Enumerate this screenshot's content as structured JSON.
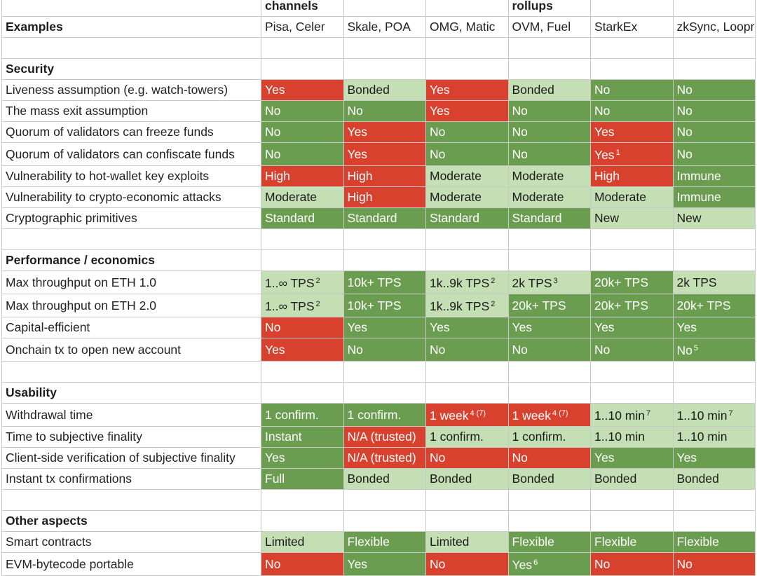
{
  "colors": {
    "dark_green": "#6a9d4f",
    "light_green": "#c5dfb4",
    "red": "#d9412f",
    "white": "#ffffff"
  },
  "top_row": [
    "",
    "channels",
    "",
    "",
    "rollups",
    "",
    ""
  ],
  "rows": [
    {
      "kind": "header-row",
      "label": "Examples",
      "cells": [
        {
          "text": "Pisa, Celer",
          "c": "wt"
        },
        {
          "text": "Skale, POA",
          "c": "wt"
        },
        {
          "text": "OMG, Matic",
          "c": "wt"
        },
        {
          "text": "OVM, Fuel",
          "c": "wt"
        },
        {
          "text": "StarkEx",
          "c": "wt"
        },
        {
          "text": "zkSync, Loopr",
          "c": "wt"
        }
      ]
    },
    {
      "kind": "blank"
    },
    {
      "kind": "section",
      "label": "Security"
    },
    {
      "kind": "data",
      "label": "Liveness assumption (e.g. watch-towers)",
      "cells": [
        {
          "text": "Yes",
          "c": "rd"
        },
        {
          "text": "Bonded",
          "c": "lg"
        },
        {
          "text": "Yes",
          "c": "rd"
        },
        {
          "text": "Bonded",
          "c": "lg"
        },
        {
          "text": "No",
          "c": "dg"
        },
        {
          "text": "No",
          "c": "dg"
        }
      ]
    },
    {
      "kind": "data",
      "label": "The mass exit assumption",
      "cells": [
        {
          "text": "No",
          "c": "dg"
        },
        {
          "text": "No",
          "c": "dg"
        },
        {
          "text": "Yes",
          "c": "rd"
        },
        {
          "text": "No",
          "c": "dg"
        },
        {
          "text": "No",
          "c": "dg"
        },
        {
          "text": "No",
          "c": "dg"
        }
      ]
    },
    {
      "kind": "data",
      "label": "Quorum of validators can freeze funds",
      "cells": [
        {
          "text": "No",
          "c": "dg"
        },
        {
          "text": "Yes",
          "c": "rd"
        },
        {
          "text": "No",
          "c": "dg"
        },
        {
          "text": "No",
          "c": "dg"
        },
        {
          "text": "Yes",
          "c": "rd"
        },
        {
          "text": "No",
          "c": "dg"
        }
      ]
    },
    {
      "kind": "data",
      "label": "Quorum of validators can confiscate funds",
      "cells": [
        {
          "text": "No",
          "c": "dg"
        },
        {
          "text": "Yes",
          "c": "rd"
        },
        {
          "text": "No",
          "c": "dg"
        },
        {
          "text": "No",
          "c": "dg"
        },
        {
          "text": "Yes",
          "sup": "1",
          "c": "rd"
        },
        {
          "text": "No",
          "c": "dg"
        }
      ]
    },
    {
      "kind": "data",
      "label": "Vulnerability to hot-wallet key exploits",
      "cells": [
        {
          "text": "High",
          "c": "rd"
        },
        {
          "text": "High",
          "c": "rd"
        },
        {
          "text": "Moderate",
          "c": "lg"
        },
        {
          "text": "Moderate",
          "c": "lg"
        },
        {
          "text": "High",
          "c": "rd"
        },
        {
          "text": "Immune",
          "c": "dg"
        }
      ]
    },
    {
      "kind": "data",
      "label": "Vulnerability to crypto-economic attacks",
      "cells": [
        {
          "text": "Moderate",
          "c": "lg"
        },
        {
          "text": "High",
          "c": "rd"
        },
        {
          "text": "Moderate",
          "c": "lg"
        },
        {
          "text": "Moderate",
          "c": "lg"
        },
        {
          "text": "Moderate",
          "c": "lg"
        },
        {
          "text": "Immune",
          "c": "dg"
        }
      ]
    },
    {
      "kind": "data",
      "label": "Cryptographic primitives",
      "cells": [
        {
          "text": "Standard",
          "c": "dg"
        },
        {
          "text": "Standard",
          "c": "dg"
        },
        {
          "text": "Standard",
          "c": "dg"
        },
        {
          "text": "Standard",
          "c": "dg"
        },
        {
          "text": "New",
          "c": "lg"
        },
        {
          "text": "New",
          "c": "lg"
        }
      ]
    },
    {
      "kind": "blank"
    },
    {
      "kind": "section",
      "label": "Performance / economics"
    },
    {
      "kind": "data",
      "label": "Max throughput on ETH 1.0",
      "cells": [
        {
          "text": "1..∞ TPS",
          "sup": "2",
          "c": "lg"
        },
        {
          "text": "10k+ TPS",
          "c": "dg"
        },
        {
          "text": "1k..9k TPS",
          "sup": "2",
          "c": "lg"
        },
        {
          "text": "2k TPS",
          "sup": "3",
          "c": "lg"
        },
        {
          "text": "20k+ TPS",
          "c": "dg"
        },
        {
          "text": "2k TPS",
          "c": "lg"
        }
      ]
    },
    {
      "kind": "data",
      "label": "Max throughput on ETH 2.0",
      "cells": [
        {
          "text": "1..∞ TPS",
          "sup": "2",
          "c": "lg"
        },
        {
          "text": "10k+ TPS",
          "c": "dg"
        },
        {
          "text": "1k..9k TPS",
          "sup": "2",
          "c": "lg"
        },
        {
          "text": "20k+ TPS",
          "c": "dg"
        },
        {
          "text": "20k+ TPS",
          "c": "dg"
        },
        {
          "text": "20k+ TPS",
          "c": "dg"
        }
      ]
    },
    {
      "kind": "data",
      "label": "Capital-efficient",
      "cells": [
        {
          "text": "No",
          "c": "rd"
        },
        {
          "text": "Yes",
          "c": "dg"
        },
        {
          "text": "Yes",
          "c": "dg"
        },
        {
          "text": "Yes",
          "c": "dg"
        },
        {
          "text": "Yes",
          "c": "dg"
        },
        {
          "text": "Yes",
          "c": "dg"
        }
      ]
    },
    {
      "kind": "data",
      "label": "Onchain tx to open new account",
      "cells": [
        {
          "text": "Yes",
          "c": "rd"
        },
        {
          "text": "No",
          "c": "dg"
        },
        {
          "text": "No",
          "c": "dg"
        },
        {
          "text": "No",
          "c": "dg"
        },
        {
          "text": "No",
          "c": "dg"
        },
        {
          "text": "No",
          "sup": "5",
          "c": "dg"
        }
      ]
    },
    {
      "kind": "blank"
    },
    {
      "kind": "section",
      "label": "Usability"
    },
    {
      "kind": "data",
      "label": "Withdrawal time",
      "cells": [
        {
          "text": "1 confirm.",
          "c": "dg"
        },
        {
          "text": "1 confirm.",
          "c": "dg"
        },
        {
          "text": "1 week",
          "sup": "4 (7)",
          "c": "rd"
        },
        {
          "text": "1 week",
          "sup": "4 (7)",
          "c": "rd"
        },
        {
          "text": "1..10 min",
          "sup": "7",
          "c": "lg"
        },
        {
          "text": "1..10 min",
          "sup": "7",
          "c": "lg"
        }
      ]
    },
    {
      "kind": "data",
      "label": "Time to subjective finality",
      "cells": [
        {
          "text": "Instant",
          "c": "dg"
        },
        {
          "text": "N/A (trusted)",
          "c": "rd"
        },
        {
          "text": "1 confirm.",
          "c": "lg"
        },
        {
          "text": "1 confirm.",
          "c": "lg"
        },
        {
          "text": "1..10 min",
          "c": "lg"
        },
        {
          "text": "1..10 min",
          "c": "lg"
        }
      ]
    },
    {
      "kind": "data",
      "label": "Client-side verification of subjective finality",
      "cells": [
        {
          "text": "Yes",
          "c": "dg"
        },
        {
          "text": "N/A (trusted)",
          "c": "rd"
        },
        {
          "text": "No",
          "c": "rd"
        },
        {
          "text": "No",
          "c": "rd"
        },
        {
          "text": "Yes",
          "c": "dg"
        },
        {
          "text": "Yes",
          "c": "dg"
        }
      ]
    },
    {
      "kind": "data",
      "label": "Instant tx confirmations",
      "cells": [
        {
          "text": "Full",
          "c": "dg"
        },
        {
          "text": "Bonded",
          "c": "lg"
        },
        {
          "text": "Bonded",
          "c": "lg"
        },
        {
          "text": "Bonded",
          "c": "lg"
        },
        {
          "text": "Bonded",
          "c": "lg"
        },
        {
          "text": "Bonded",
          "c": "lg"
        }
      ]
    },
    {
      "kind": "blank"
    },
    {
      "kind": "section",
      "label": "Other aspects"
    },
    {
      "kind": "data",
      "label": "Smart contracts",
      "cells": [
        {
          "text": "Limited",
          "c": "lg"
        },
        {
          "text": "Flexible",
          "c": "dg"
        },
        {
          "text": "Limited",
          "c": "lg"
        },
        {
          "text": "Flexible",
          "c": "dg"
        },
        {
          "text": "Flexible",
          "c": "dg"
        },
        {
          "text": "Flexible",
          "c": "dg"
        }
      ]
    },
    {
      "kind": "data",
      "label": "EVM-bytecode portable",
      "cells": [
        {
          "text": "No",
          "c": "rd"
        },
        {
          "text": "Yes",
          "c": "dg"
        },
        {
          "text": "No",
          "c": "rd"
        },
        {
          "text": "Yes",
          "sup": "6",
          "c": "dg"
        },
        {
          "text": "No",
          "c": "rd"
        },
        {
          "text": "No",
          "c": "rd"
        }
      ]
    }
  ]
}
